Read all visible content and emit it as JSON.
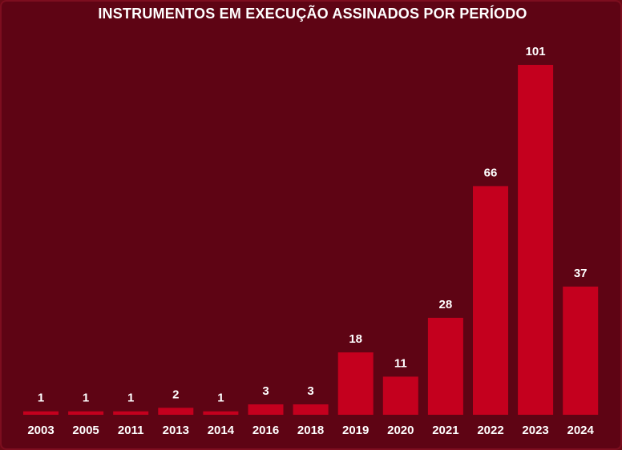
{
  "chart_data": {
    "type": "bar",
    "title": "INSTRUMENTOS EM EXECUÇÃO ASSINADOS POR PERÍODO",
    "categories": [
      "2003",
      "2005",
      "2011",
      "2013",
      "2014",
      "2016",
      "2018",
      "2019",
      "2020",
      "2021",
      "2022",
      "2023",
      "2024"
    ],
    "values": [
      1,
      1,
      1,
      2,
      1,
      3,
      3,
      18,
      11,
      28,
      66,
      101,
      37
    ],
    "xlabel": "",
    "ylabel": "",
    "grid": false,
    "legend": "none",
    "colors": {
      "background": "#5e0414",
      "bar": "#c4001e",
      "text": "#ffffff"
    }
  }
}
